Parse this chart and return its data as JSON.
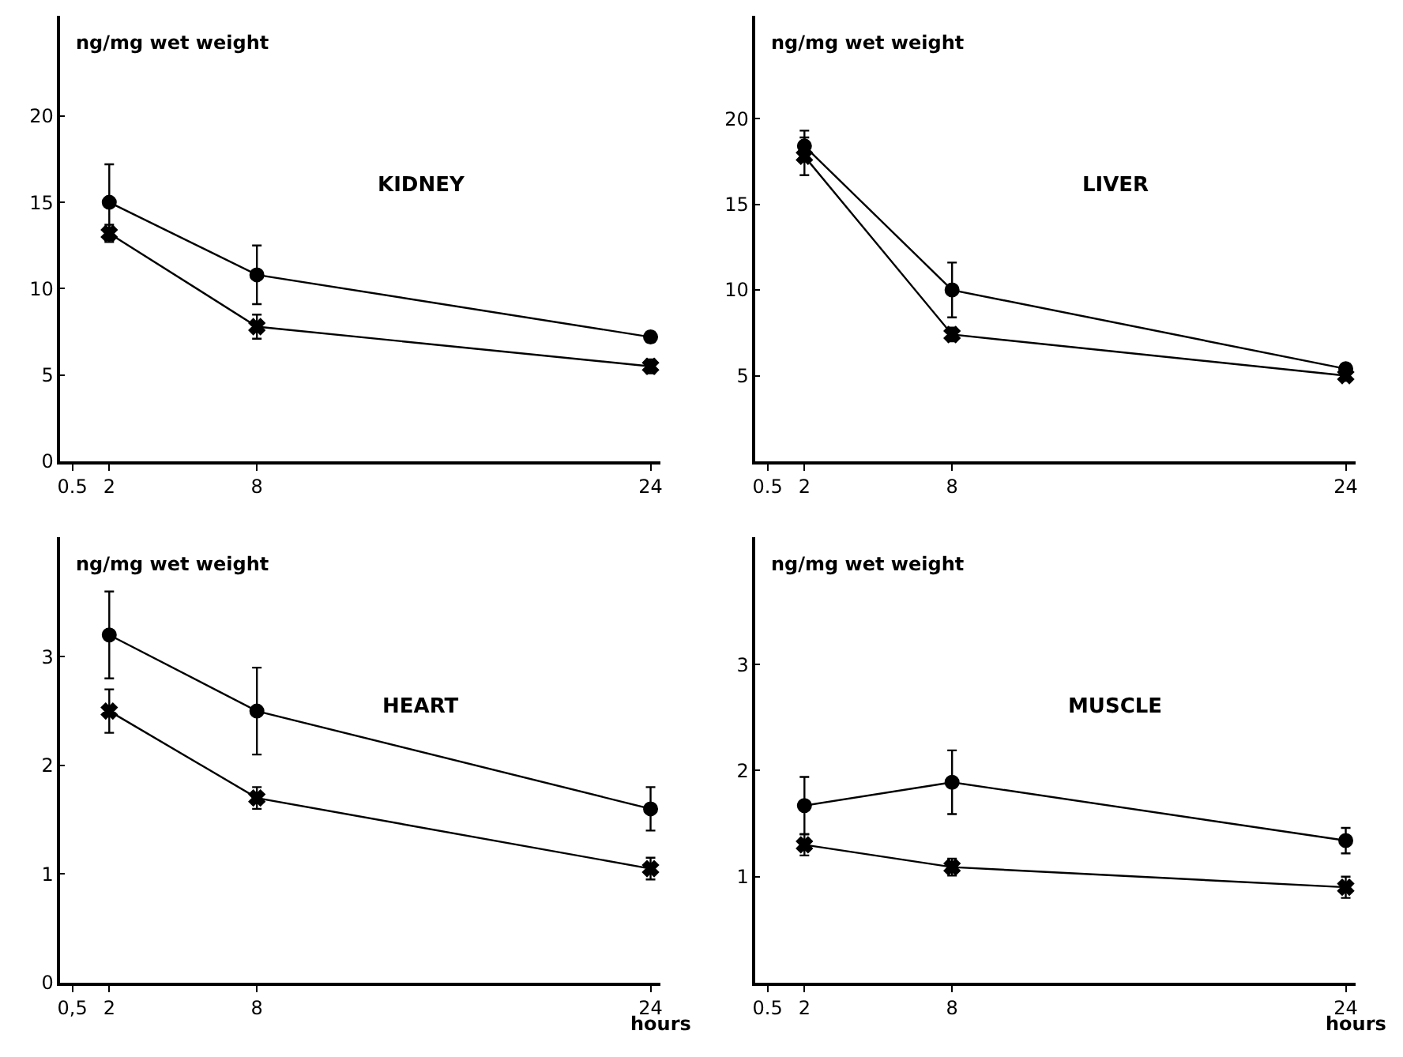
{
  "chart_data": [
    {
      "type": "line",
      "title": "KIDNEY",
      "ylabel": "ng/mg wet weight",
      "x": [
        2,
        8,
        24
      ],
      "xlim": [
        0,
        24.4
      ],
      "xticks": [
        0.5,
        2,
        8,
        24
      ],
      "ylim": [
        0,
        25.8
      ],
      "yticks": [
        0,
        5,
        10,
        15,
        20
      ],
      "series": [
        {
          "color": "#000000",
          "marker": "circle",
          "values": [
            15,
            10.8,
            7.2
          ],
          "errors": [
            2.2,
            1.7,
            0.3
          ]
        },
        {
          "color": "#000000",
          "marker": "cross",
          "values": [
            13.2,
            7.8,
            5.5
          ],
          "errors": [
            0.5,
            0.7,
            0.4
          ]
        }
      ]
    },
    {
      "type": "line",
      "title": "LIVER",
      "ylabel": "ng/mg wet weight",
      "x": [
        2,
        8,
        24
      ],
      "xlim": [
        0,
        24.4
      ],
      "xticks": [
        0.5,
        2,
        8,
        24
      ],
      "ylim": [
        0,
        26
      ],
      "yticks": [
        5,
        10,
        15,
        20
      ],
      "series": [
        {
          "color": "#000000",
          "marker": "circle",
          "values": [
            18.4,
            10.0,
            5.4
          ],
          "errors": [
            0.9,
            1.6,
            0.3
          ]
        },
        {
          "color": "#000000",
          "marker": "cross",
          "values": [
            17.8,
            7.4,
            5.0
          ],
          "errors": [
            1.1,
            0.4,
            0.3
          ]
        }
      ]
    },
    {
      "type": "line",
      "title": "HEART",
      "ylabel": "ng/mg wet weight",
      "xlabel": "hours",
      "x": [
        2,
        8,
        24
      ],
      "xlim": [
        0,
        24.4
      ],
      "xticks": [
        {
          "value": 0.5,
          "label": "0,5"
        },
        2,
        8,
        24
      ],
      "ylim": [
        0,
        4.1
      ],
      "yticks": [
        0,
        1,
        2,
        3
      ],
      "series": [
        {
          "color": "#000000",
          "marker": "circle",
          "values": [
            3.2,
            2.5,
            1.6
          ],
          "errors": [
            0.4,
            0.4,
            0.2
          ]
        },
        {
          "color": "#000000",
          "marker": "cross",
          "values": [
            2.5,
            1.7,
            1.05
          ],
          "errors": [
            0.2,
            0.1,
            0.1
          ]
        }
      ]
    },
    {
      "type": "line",
      "title": "MUSCLE",
      "ylabel": "ng/mg wet weight",
      "xlabel": "hours",
      "x": [
        2,
        8,
        24
      ],
      "xlim": [
        0,
        24.4
      ],
      "xticks": [
        0.5,
        2,
        8,
        24
      ],
      "ylim": [
        0,
        4.2
      ],
      "yticks": [
        1,
        2,
        3
      ],
      "series": [
        {
          "color": "#000000",
          "marker": "circle",
          "values": [
            1.67,
            1.89,
            1.34
          ],
          "errors": [
            0.27,
            0.3,
            0.12
          ]
        },
        {
          "color": "#000000",
          "marker": "cross",
          "values": [
            1.3,
            1.09,
            0.9
          ],
          "errors": [
            0.1,
            0.08,
            0.1
          ]
        }
      ]
    }
  ]
}
